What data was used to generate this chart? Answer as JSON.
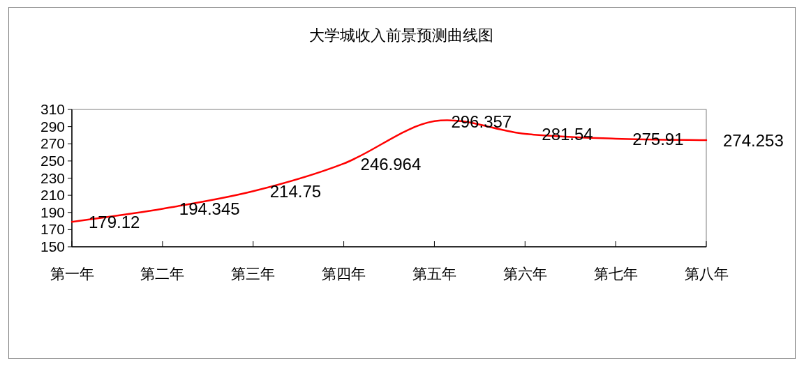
{
  "chart_data": {
    "type": "line",
    "title": "大学城收入前景预测曲线图",
    "categories": [
      "第一年",
      "第二年",
      "第三年",
      "第四年",
      "第五年",
      "第六年",
      "第七年",
      "第八年"
    ],
    "values": [
      179.12,
      194.345,
      214.75,
      246.964,
      296.357,
      281.54,
      275.91,
      274.253
    ],
    "color": "#ff0000",
    "ylim": [
      150,
      310
    ],
    "yticks": [
      150,
      170,
      190,
      210,
      230,
      250,
      270,
      290,
      310
    ],
    "data_labels": true
  }
}
